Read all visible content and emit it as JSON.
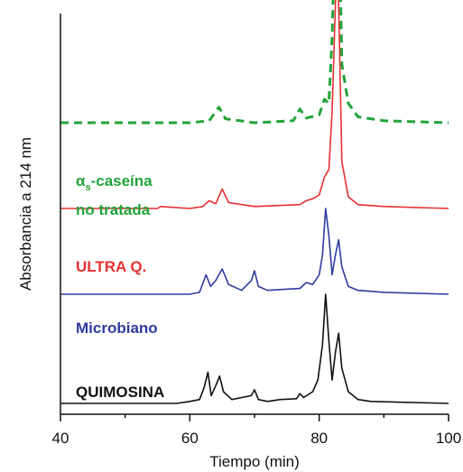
{
  "chart_data": {
    "type": "line",
    "xlabel": "Tiempo (min)",
    "ylabel": "Absorbancia a 214 nm",
    "xlim": [
      40,
      100
    ],
    "xticks": [
      "40",
      "60",
      "80",
      "100"
    ],
    "grid": false,
    "legend": "inline-left",
    "series": [
      {
        "name_main": "α",
        "name_sub": "s",
        "name_rest": "-caseína",
        "name_line2": "no tratada",
        "color": "#22a33a",
        "dashed": true,
        "offset": 0.72,
        "points": [
          [
            40,
            0
          ],
          [
            60,
            0
          ],
          [
            63,
            0.005
          ],
          [
            64.5,
            0.04
          ],
          [
            65.5,
            0.01
          ],
          [
            70,
            0
          ],
          [
            76,
            0.005
          ],
          [
            77,
            0.035
          ],
          [
            78,
            0.012
          ],
          [
            80,
            0.02
          ],
          [
            80.8,
            0.06
          ],
          [
            81.5,
            0.05
          ],
          [
            82,
            0.22
          ],
          [
            82.5,
            0.55
          ],
          [
            82.8,
            0.82
          ],
          [
            83.1,
            0.5
          ],
          [
            83.5,
            0.15
          ],
          [
            84.5,
            0.05
          ],
          [
            86,
            0.015
          ],
          [
            90,
            0.005
          ],
          [
            100,
            0
          ]
        ]
      },
      {
        "name": "ULTRA Q.",
        "color": "#e53030",
        "dashed": false,
        "offset": 0.5,
        "points": [
          [
            40,
            0
          ],
          [
            55,
            0
          ],
          [
            55.5,
            0.005
          ],
          [
            60,
            0
          ],
          [
            62,
            0.005
          ],
          [
            63,
            0.02
          ],
          [
            64,
            0.012
          ],
          [
            65,
            0.05
          ],
          [
            66,
            0.015
          ],
          [
            70,
            0.005
          ],
          [
            77,
            0.01
          ],
          [
            78,
            0.02
          ],
          [
            79,
            0.025
          ],
          [
            80,
            0.035
          ],
          [
            80.8,
            0.08
          ],
          [
            81.5,
            0.1
          ],
          [
            82,
            0.25
          ],
          [
            82.5,
            0.52
          ],
          [
            82.8,
            0.68
          ],
          [
            83.1,
            0.45
          ],
          [
            83.5,
            0.12
          ],
          [
            84.5,
            0.03
          ],
          [
            86,
            0.01
          ],
          [
            90,
            0.005
          ],
          [
            100,
            0
          ]
        ]
      },
      {
        "name": "Microbiano",
        "color": "#2e3c9e",
        "dashed": false,
        "offset": 0.28,
        "points": [
          [
            40,
            0
          ],
          [
            60,
            0
          ],
          [
            61.5,
            0.005
          ],
          [
            62.5,
            0.05
          ],
          [
            63.2,
            0.02
          ],
          [
            64,
            0.035
          ],
          [
            65,
            0.065
          ],
          [
            66,
            0.025
          ],
          [
            68,
            0.01
          ],
          [
            69.5,
            0.035
          ],
          [
            70,
            0.06
          ],
          [
            70.6,
            0.02
          ],
          [
            72,
            0.01
          ],
          [
            77,
            0.015
          ],
          [
            78,
            0.03
          ],
          [
            79,
            0.025
          ],
          [
            80,
            0.05
          ],
          [
            80.5,
            0.1
          ],
          [
            81,
            0.22
          ],
          [
            81.5,
            0.15
          ],
          [
            82,
            0.05
          ],
          [
            82.5,
            0.1
          ],
          [
            83,
            0.14
          ],
          [
            83.5,
            0.07
          ],
          [
            84.5,
            0.02
          ],
          [
            86,
            0.01
          ],
          [
            90,
            0.005
          ],
          [
            100,
            0
          ]
        ]
      },
      {
        "name": "QUIMOSINA",
        "color": "#111111",
        "dashed": false,
        "offset": 0.0,
        "points": [
          [
            40,
            0
          ],
          [
            58,
            0
          ],
          [
            60,
            0.005
          ],
          [
            61.5,
            0.01
          ],
          [
            62.2,
            0.04
          ],
          [
            62.8,
            0.08
          ],
          [
            63.3,
            0.02
          ],
          [
            64,
            0.045
          ],
          [
            64.6,
            0.07
          ],
          [
            65.2,
            0.03
          ],
          [
            66.5,
            0.01
          ],
          [
            69.5,
            0.02
          ],
          [
            70,
            0.035
          ],
          [
            70.6,
            0.01
          ],
          [
            72,
            0.005
          ],
          [
            74,
            0.01
          ],
          [
            76.5,
            0.012
          ],
          [
            77,
            0.025
          ],
          [
            77.6,
            0.015
          ],
          [
            79,
            0.03
          ],
          [
            79.8,
            0.06
          ],
          [
            80.5,
            0.15
          ],
          [
            81,
            0.28
          ],
          [
            81.5,
            0.16
          ],
          [
            82,
            0.06
          ],
          [
            82.5,
            0.13
          ],
          [
            83,
            0.18
          ],
          [
            83.5,
            0.09
          ],
          [
            84.5,
            0.03
          ],
          [
            86,
            0.01
          ],
          [
            88,
            0.005
          ],
          [
            100,
            0
          ]
        ]
      }
    ]
  }
}
